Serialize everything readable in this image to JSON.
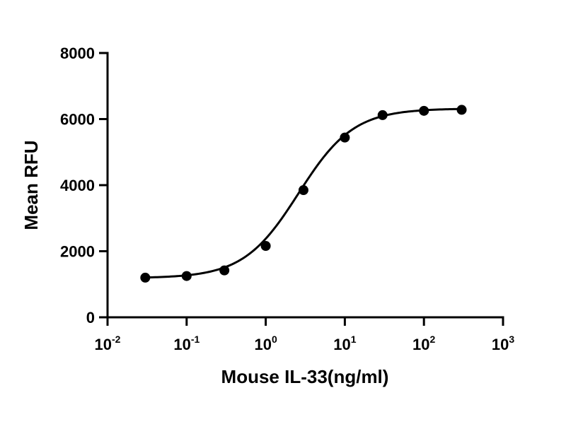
{
  "chart_data": {
    "type": "scatter",
    "title": "",
    "xlabel": "Mouse IL-33(ng/ml)",
    "ylabel": "Mean RFU",
    "x_scale": "log",
    "xlim": [
      0.01,
      1000
    ],
    "ylim": [
      0,
      8000
    ],
    "x_ticks": [
      {
        "value": 0.01,
        "base": "10",
        "exp": "-2"
      },
      {
        "value": 0.1,
        "base": "10",
        "exp": "-1"
      },
      {
        "value": 1,
        "base": "10",
        "exp": "0"
      },
      {
        "value": 10,
        "base": "10",
        "exp": "1"
      },
      {
        "value": 100,
        "base": "10",
        "exp": "2"
      },
      {
        "value": 1000,
        "base": "10",
        "exp": "3"
      }
    ],
    "y_ticks": [
      "0",
      "2000",
      "4000",
      "6000",
      "8000"
    ],
    "grid": false,
    "legend": "none",
    "series": [
      {
        "x": [
          0.03,
          0.1,
          0.3,
          1,
          3,
          10,
          30,
          100,
          300
        ],
        "y": [
          1200,
          1250,
          1420,
          2160,
          3850,
          5440,
          6120,
          6250,
          6280
        ],
        "color": "#000000"
      }
    ],
    "fit": {
      "model": "4PL",
      "bottom": 1185,
      "top": 6320,
      "ec50": 2.6,
      "hill": 1.25
    }
  }
}
